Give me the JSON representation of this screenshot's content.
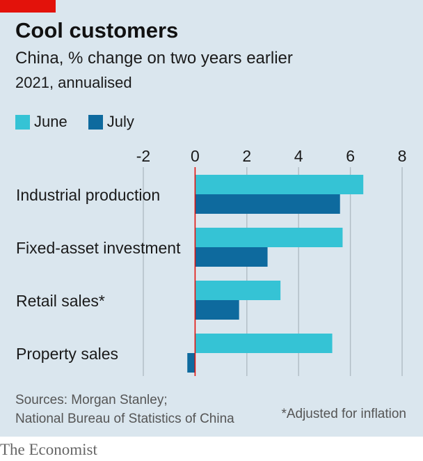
{
  "header": {
    "title": "Cool customers",
    "subtitle": "China, % change on two years earlier",
    "note": "2021, annualised"
  },
  "colors": {
    "background": "#dae6ee",
    "tag": "#e3120b",
    "june": "#35c3d5",
    "july": "#0e6a9e",
    "zero_line": "#e3120b",
    "grid": "#b0bcc4"
  },
  "chart_data": {
    "type": "bar",
    "orientation": "horizontal",
    "categories": [
      "Industrial production",
      "Fixed-asset investment",
      "Retail sales*",
      "Property sales"
    ],
    "series": [
      {
        "name": "June",
        "values": [
          6.5,
          5.7,
          3.3,
          5.3
        ]
      },
      {
        "name": "July",
        "values": [
          5.6,
          2.8,
          1.7,
          -0.3
        ]
      }
    ],
    "xlim": [
      -2,
      8
    ],
    "xticks": [
      -2,
      0,
      2,
      4,
      6,
      8
    ],
    "grid": true,
    "legend": "top-left"
  },
  "footer": {
    "sources_line1": "Sources: Morgan Stanley;",
    "sources_line2": "National Bureau of Statistics of China",
    "footnote": "*Adjusted for inflation",
    "brand": "The Economist"
  }
}
